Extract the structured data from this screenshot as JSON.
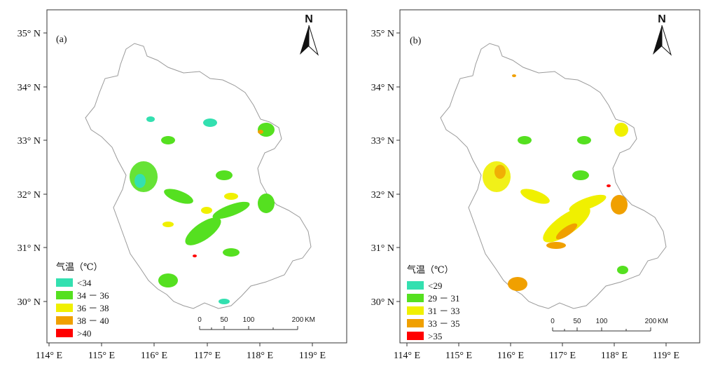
{
  "panels": [
    {
      "label": "(a)",
      "north": "N",
      "lat_labels": [
        "35° N",
        "34° N",
        "33° N",
        "32° N",
        "31° N",
        "30° N"
      ],
      "lon_labels": [
        "114° E",
        "115° E",
        "116° E",
        "117° E",
        "118° E",
        "119° E"
      ],
      "legend": {
        "title": "气温（℃）",
        "items": [
          {
            "label": "<34",
            "color": "#33e0b0"
          },
          {
            "label": "34 － 36",
            "color": "#55e020"
          },
          {
            "label": "36 － 38",
            "color": "#f0f000"
          },
          {
            "label": "38 － 40",
            "color": "#f0a000"
          },
          {
            "label": ">40",
            "color": "#ff0000"
          }
        ]
      },
      "scale": {
        "ticks": [
          "0",
          "50",
          "100",
          "200"
        ],
        "unit": "KM"
      }
    },
    {
      "label": "(b)",
      "north": "N",
      "lat_labels": [
        "35° N",
        "34° N",
        "33° N",
        "32° N",
        "31° N",
        "30° N"
      ],
      "lon_labels": [
        "114° E",
        "115° E",
        "116° E",
        "117° E",
        "118° E",
        "119° E"
      ],
      "legend": {
        "title": "气温（℃）",
        "items": [
          {
            "label": "<29",
            "color": "#33e0b0"
          },
          {
            "label": "29 － 31",
            "color": "#55e020"
          },
          {
            "label": "31 － 33",
            "color": "#f0f000"
          },
          {
            "label": "33 － 35",
            "color": "#f0a000"
          },
          {
            "label": ">35",
            "color": "#ff0000"
          }
        ]
      },
      "scale": {
        "ticks": [
          "0",
          "50",
          "100",
          "200"
        ],
        "unit": "KM"
      }
    }
  ]
}
